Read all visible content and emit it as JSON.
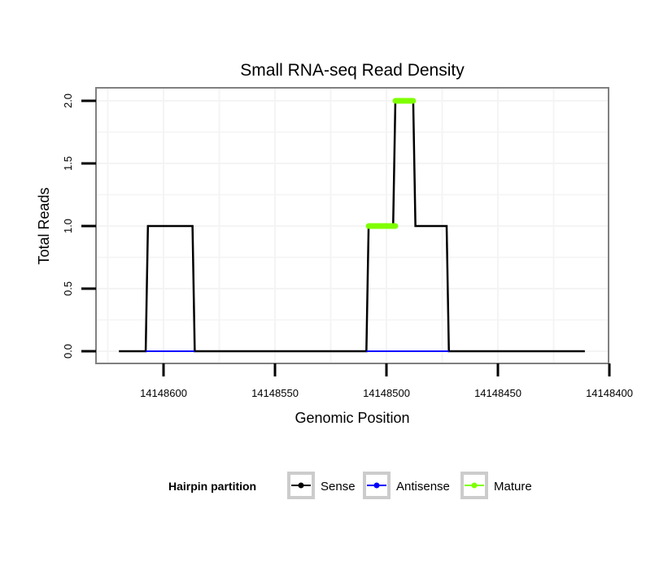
{
  "chart_data": {
    "type": "line",
    "title": "Small RNA-seq Read Density",
    "xlabel": "Genomic Position",
    "ylabel": "Total Reads",
    "xlim": [
      14148620,
      14148400
    ],
    "x_reversed": true,
    "ylim": [
      0,
      2
    ],
    "xticks": [
      14148600,
      14148550,
      14148500,
      14148450,
      14148400
    ],
    "xtick_labels": [
      "14148600",
      "14148550",
      "14148500",
      "14148450",
      "14148400"
    ],
    "yticks": [
      0,
      0.5,
      1,
      1.5,
      2
    ],
    "ytick_labels": [
      "0.0",
      "0.5",
      "1.0",
      "1.5",
      "2.0"
    ],
    "grid": true,
    "legend": {
      "title": "Hairpin partition",
      "placement": "bottom"
    },
    "series": [
      {
        "name": "Sense",
        "color": "#000000",
        "segments": [
          [
            [
              14148620,
              0
            ],
            [
              14148608,
              0
            ],
            [
              14148607,
              1
            ],
            [
              14148587,
              1
            ],
            [
              14148586,
              0
            ],
            [
              14148509,
              0
            ],
            [
              14148508,
              1
            ],
            [
              14148497,
              1
            ],
            [
              14148496,
              2
            ],
            [
              14148488,
              2
            ],
            [
              14148487,
              1
            ],
            [
              14148473,
              1
            ],
            [
              14148472,
              0
            ],
            [
              14148411,
              0
            ]
          ]
        ]
      },
      {
        "name": "Antisense",
        "color": "#0000ff",
        "segments": [
          [
            [
              14148608,
              0
            ],
            [
              14148586,
              0
            ]
          ],
          [
            [
              14148509,
              0
            ],
            [
              14148472,
              0
            ]
          ]
        ]
      },
      {
        "name": "Mature",
        "color": "#7fff00",
        "segments": [
          [
            [
              14148508,
              1
            ],
            [
              14148496,
              1
            ]
          ],
          [
            [
              14148496,
              2
            ],
            [
              14148488,
              2
            ]
          ]
        ]
      }
    ]
  }
}
